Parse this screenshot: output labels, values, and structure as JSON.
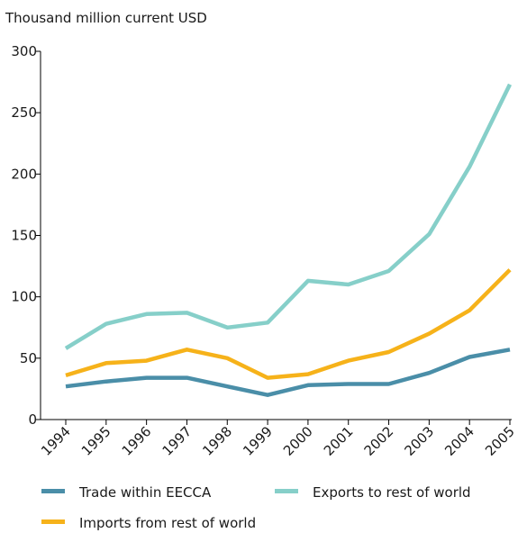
{
  "chart_data": {
    "type": "line",
    "ylabel": "Thousand million current USD",
    "xlabel": "",
    "ylim": [
      0,
      300
    ],
    "yticks": [
      0,
      50,
      100,
      150,
      200,
      250,
      300
    ],
    "x": [
      "1994",
      "1995",
      "1996",
      "1997",
      "1998",
      "1999",
      "2000",
      "2001",
      "2002",
      "2003",
      "2004",
      "2005"
    ],
    "grid": false,
    "legend_position": "bottom",
    "series": [
      {
        "name": "Trade within EECCA",
        "color": "#4a8ea8",
        "values": [
          27,
          31,
          34,
          34,
          27,
          20,
          28,
          29,
          29,
          38,
          51,
          57
        ]
      },
      {
        "name": "Exports to rest of world",
        "color": "#86cfc9",
        "values": [
          58,
          78,
          86,
          87,
          75,
          79,
          113,
          110,
          121,
          151,
          206,
          273
        ]
      },
      {
        "name": "Imports from rest of world",
        "color": "#f6b21a",
        "values": [
          36,
          46,
          48,
          57,
          50,
          34,
          37,
          48,
          55,
          70,
          89,
          122
        ]
      }
    ]
  }
}
